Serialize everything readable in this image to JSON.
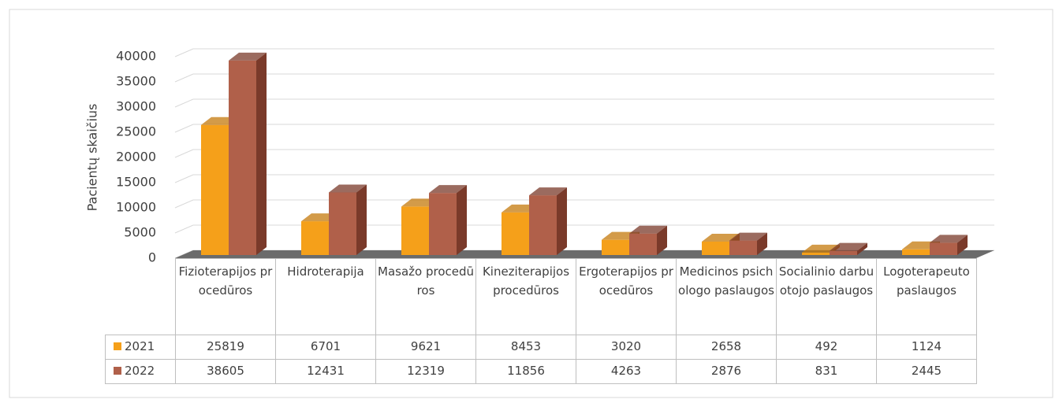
{
  "chart_data": {
    "type": "bar3d",
    "y_label": "Pacientų skaičius",
    "categories": [
      "Fizioterapijos procedūros",
      "Hidroterapija",
      "Masažo procedūros",
      "Kineziterapijos procedūros",
      "Ergoterapijos procedūros",
      "Medicinos psichologo paslaugos",
      "Socialinio darbuotojo paslaugos",
      "Logoterapeuto paslaugos"
    ],
    "series": [
      {
        "name": "2021",
        "color": "#f5a01a",
        "side": "#c47a0c",
        "values": [
          25819,
          6701,
          9621,
          8453,
          3020,
          2658,
          492,
          1124
        ]
      },
      {
        "name": "2022",
        "color": "#b0604a",
        "side": "#7a3a2a",
        "values": [
          38605,
          12431,
          12319,
          11856,
          4263,
          2876,
          831,
          2445
        ]
      }
    ],
    "ylim": [
      0,
      40000
    ],
    "yticks": [
      0,
      5000,
      10000,
      15000,
      20000,
      25000,
      30000,
      35000,
      40000
    ],
    "grid": true,
    "data_table": true
  }
}
